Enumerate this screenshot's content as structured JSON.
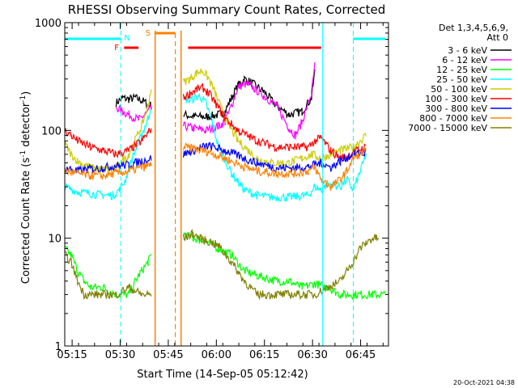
{
  "chart_data": {
    "type": "line",
    "title": "RHESSI Observing Summary Count Rates, Corrected",
    "xlabel": "Start Time (14-Sep-05 05:12:42)",
    "ylabel_main": "Corrected Count Rate (s",
    "ylabel_sup1": "-1",
    "ylabel_mid": " detector",
    "ylabel_sup2": "-1",
    "ylabel_end": ")",
    "x_unit": "minutes after 05:12:42",
    "xlim": [
      0,
      101
    ],
    "ylim": [
      1,
      1000
    ],
    "yscale": "log",
    "x_ticks": [
      {
        "label": "05:15",
        "x": 2.3
      },
      {
        "label": "05:30",
        "x": 17.3
      },
      {
        "label": "05:45",
        "x": 32.3
      },
      {
        "label": "06:00",
        "x": 47.3
      },
      {
        "label": "06:15",
        "x": 62.3
      },
      {
        "label": "06:30",
        "x": 77.3
      },
      {
        "label": "06:45",
        "x": 92.3
      }
    ],
    "y_ticks": [
      {
        "label": "1",
        "y": 1
      },
      {
        "label": "10",
        "y": 10
      },
      {
        "label": "100",
        "y": 100
      },
      {
        "label": "1000",
        "y": 1000
      }
    ],
    "legend": {
      "header1": "Det 1,3,4,5,6,9,",
      "header2": "Att 0",
      "position": "right, outside plot"
    },
    "series": [
      {
        "name": "3 - 6 keV",
        "color": "#000000",
        "segments": [
          [
            [
              16,
              180
            ],
            [
              18,
              200
            ],
            [
              20,
              195
            ],
            [
              22,
              200
            ],
            [
              24,
              190
            ],
            [
              26,
              175
            ],
            [
              27,
              170
            ]
          ],
          [
            [
              37,
              140
            ],
            [
              40,
              135
            ],
            [
              44,
              133
            ],
            [
              48,
              140
            ],
            [
              50,
              150
            ],
            [
              52,
              200
            ],
            [
              54,
              260
            ],
            [
              56,
              300
            ],
            [
              58,
              280
            ],
            [
              62,
              230
            ],
            [
              66,
              170
            ],
            [
              70,
              140
            ],
            [
              74,
              150
            ],
            [
              77,
              200
            ],
            [
              78,
              350
            ]
          ]
        ]
      },
      {
        "name": "6 - 12 keV",
        "color": "#ff00ff",
        "segments": [
          [
            [
              16,
              165
            ],
            [
              18,
              150
            ],
            [
              20,
              140
            ],
            [
              23,
              125
            ],
            [
              25,
              140
            ],
            [
              27,
              160
            ]
          ],
          [
            [
              37,
              110
            ],
            [
              40,
              105
            ],
            [
              44,
              100
            ],
            [
              48,
              110
            ],
            [
              50,
              120
            ],
            [
              52,
              170
            ],
            [
              54,
              250
            ],
            [
              56,
              270
            ],
            [
              58,
              260
            ],
            [
              62,
              210
            ],
            [
              66,
              170
            ],
            [
              70,
              105
            ],
            [
              72,
              90
            ],
            [
              74,
              120
            ],
            [
              77,
              220
            ],
            [
              78,
              400
            ]
          ]
        ]
      },
      {
        "name": "12 - 25 keV",
        "color": "#00ff00",
        "segments": [
          [
            [
              0,
              8
            ],
            [
              2,
              7
            ],
            [
              4,
              5
            ],
            [
              6,
              4
            ],
            [
              8,
              3.5
            ],
            [
              12,
              3.5
            ],
            [
              16,
              3
            ],
            [
              20,
              3
            ],
            [
              22,
              4
            ],
            [
              24,
              5
            ],
            [
              26,
              6
            ],
            [
              27,
              7
            ]
          ],
          [
            [
              37,
              11
            ],
            [
              40,
              10
            ],
            [
              44,
              9.5
            ],
            [
              48,
              8
            ],
            [
              52,
              7
            ],
            [
              56,
              5
            ],
            [
              60,
              4.5
            ],
            [
              66,
              4
            ],
            [
              70,
              4
            ],
            [
              74,
              3.5
            ],
            [
              78,
              3.8
            ],
            [
              82,
              3.5
            ],
            [
              86,
              3
            ],
            [
              90,
              3
            ],
            [
              96,
              3
            ],
            [
              100,
              3
            ]
          ]
        ]
      },
      {
        "name": "25 - 50 keV",
        "color": "#00ffff",
        "segments": [
          [
            [
              0,
              30
            ],
            [
              4,
              27
            ],
            [
              8,
              26
            ],
            [
              12,
              25
            ],
            [
              15,
              25
            ],
            [
              17,
              28
            ],
            [
              19,
              35
            ],
            [
              21,
              55
            ],
            [
              24,
              90
            ],
            [
              26,
              130
            ],
            [
              27,
              170
            ]
          ],
          [
            [
              37,
              200
            ],
            [
              39,
              190
            ],
            [
              42,
              210
            ],
            [
              44,
              180
            ],
            [
              46,
              120
            ],
            [
              48,
              70
            ],
            [
              52,
              40
            ],
            [
              56,
              28
            ],
            [
              60,
              25
            ],
            [
              64,
              24
            ],
            [
              70,
              24
            ],
            [
              76,
              25
            ],
            [
              78,
              30
            ],
            [
              80,
              28
            ],
            [
              82,
              32
            ],
            [
              86,
              30
            ],
            [
              88,
              35
            ],
            [
              90,
              28
            ],
            [
              92,
              40
            ],
            [
              94,
              60
            ]
          ]
        ]
      },
      {
        "name": "50 - 100 keV",
        "color": "#cccc00",
        "segments": [
          [
            [
              0,
              75
            ],
            [
              2,
              60
            ],
            [
              4,
              52
            ],
            [
              8,
              45
            ],
            [
              12,
              43
            ],
            [
              16,
              45
            ],
            [
              20,
              60
            ],
            [
              24,
              110
            ],
            [
              26,
              170
            ],
            [
              27,
              250
            ]
          ],
          [
            [
              37,
              280
            ],
            [
              39,
              300
            ],
            [
              41,
              340
            ],
            [
              43,
              360
            ],
            [
              45,
              300
            ],
            [
              47,
              220
            ],
            [
              50,
              130
            ],
            [
              54,
              80
            ],
            [
              60,
              55
            ],
            [
              64,
              50
            ],
            [
              70,
              50
            ],
            [
              74,
              55
            ],
            [
              77,
              60
            ],
            [
              80,
              55
            ],
            [
              83,
              60
            ],
            [
              86,
              65
            ],
            [
              90,
              70
            ],
            [
              94,
              90
            ]
          ]
        ]
      },
      {
        "name": "100 - 300 keV",
        "color": "#ff0000",
        "segments": [
          [
            [
              0,
              100
            ],
            [
              2,
              90
            ],
            [
              4,
              80
            ],
            [
              8,
              70
            ],
            [
              12,
              65
            ],
            [
              16,
              60
            ],
            [
              20,
              65
            ],
            [
              24,
              80
            ],
            [
              26,
              95
            ],
            [
              27,
              105
            ]
          ],
          [
            [
              37,
              200
            ],
            [
              39,
              220
            ],
            [
              41,
              240
            ],
            [
              43,
              250
            ],
            [
              45,
              220
            ],
            [
              47,
              180
            ],
            [
              50,
              130
            ],
            [
              54,
              100
            ],
            [
              60,
              80
            ],
            [
              66,
              70
            ],
            [
              72,
              70
            ],
            [
              76,
              70
            ],
            [
              78,
              80
            ],
            [
              80,
              85
            ],
            [
              83,
              65
            ],
            [
              86,
              55
            ],
            [
              88,
              58
            ],
            [
              91,
              65
            ],
            [
              94,
              70
            ]
          ]
        ]
      },
      {
        "name": "300 - 800 keV",
        "color": "#0000ff",
        "segments": [
          [
            [
              0,
              45
            ],
            [
              4,
              42
            ],
            [
              8,
              44
            ],
            [
              12,
              45
            ],
            [
              16,
              47
            ],
            [
              20,
              48
            ],
            [
              24,
              52
            ],
            [
              27,
              55
            ]
          ],
          [
            [
              37,
              60
            ],
            [
              40,
              65
            ],
            [
              43,
              70
            ],
            [
              45,
              72
            ],
            [
              48,
              68
            ],
            [
              52,
              62
            ],
            [
              56,
              55
            ],
            [
              60,
              50
            ],
            [
              66,
              45
            ],
            [
              72,
              45
            ],
            [
              76,
              46
            ],
            [
              78,
              48
            ],
            [
              80,
              50
            ],
            [
              83,
              45
            ],
            [
              86,
              52
            ],
            [
              90,
              60
            ],
            [
              94,
              62
            ]
          ]
        ]
      },
      {
        "name": "800 - 7000 keV",
        "color": "#ff8000",
        "segments": [
          [
            [
              0,
              42
            ],
            [
              4,
              40
            ],
            [
              8,
              38
            ],
            [
              12,
              38
            ],
            [
              16,
              40
            ],
            [
              20,
              42
            ],
            [
              24,
              45
            ],
            [
              27,
              48
            ]
          ],
          [
            [
              37,
              70
            ],
            [
              40,
              68
            ],
            [
              43,
              65
            ],
            [
              45,
              63
            ],
            [
              48,
              58
            ],
            [
              52,
              52
            ],
            [
              56,
              46
            ],
            [
              60,
              42
            ],
            [
              66,
              40
            ],
            [
              72,
              40
            ],
            [
              76,
              42
            ],
            [
              78,
              45
            ],
            [
              80,
              35
            ],
            [
              83,
              30
            ],
            [
              86,
              35
            ],
            [
              88,
              42
            ],
            [
              90,
              55
            ],
            [
              92,
              60
            ],
            [
              94,
              65
            ]
          ]
        ]
      },
      {
        "name": "7000 - 15000 keV",
        "color": "#808000",
        "segments": [
          [
            [
              0,
              7
            ],
            [
              2,
              6
            ],
            [
              4,
              4
            ],
            [
              6,
              3
            ],
            [
              8,
              3
            ],
            [
              12,
              3
            ],
            [
              16,
              3
            ],
            [
              20,
              3.5
            ],
            [
              24,
              3
            ],
            [
              27,
              3
            ]
          ],
          [
            [
              37,
              10
            ],
            [
              40,
              11
            ],
            [
              42,
              10
            ],
            [
              44,
              9.5
            ],
            [
              46,
              9
            ],
            [
              48,
              8.5
            ],
            [
              52,
              6
            ],
            [
              56,
              4
            ],
            [
              60,
              3
            ],
            [
              66,
              3
            ],
            [
              70,
              3
            ],
            [
              74,
              3
            ],
            [
              78,
              3
            ],
            [
              82,
              3.5
            ],
            [
              86,
              4
            ],
            [
              88,
              5
            ],
            [
              90,
              6
            ],
            [
              92,
              8
            ],
            [
              94,
              9
            ],
            [
              96,
              10
            ],
            [
              98,
              10
            ]
          ]
        ]
      }
    ],
    "annotations": {
      "night_label": "N",
      "saa_label": "S",
      "flare_label": "F",
      "night_color": "#00ffff",
      "saa_color": "#ff8000",
      "flare_color": "#ff0000",
      "night_bars": [
        [
          0,
          17.5
        ],
        [
          90,
          100
        ]
      ],
      "night_dashed_x": [
        17.5,
        90
      ],
      "night_solid_x": [
        80.5
      ],
      "saa_bar": [
        28.2,
        34.5
      ],
      "saa_solid_x": [
        28.2,
        36.3
      ],
      "saa_dashed_x": [
        34.5
      ],
      "flare_bars": [
        [
          18.5,
          23
        ],
        [
          38.5,
          80
        ]
      ]
    }
  },
  "footer": {
    "date": "20-Oct-2021 04:38"
  }
}
